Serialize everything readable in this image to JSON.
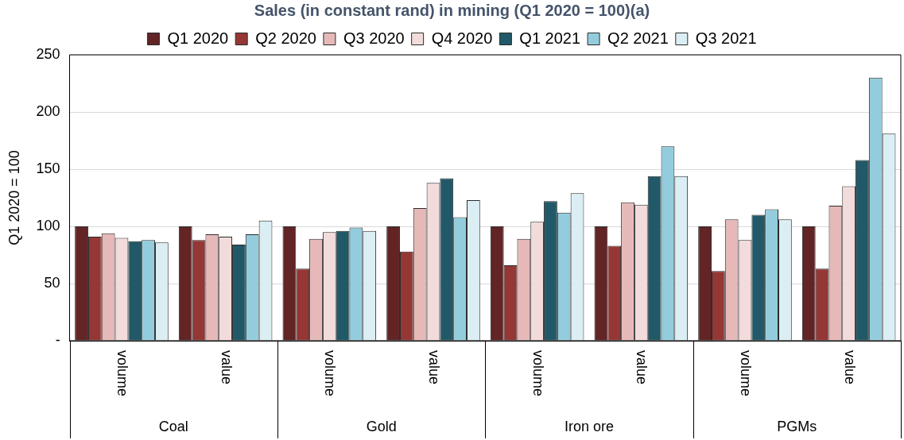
{
  "chart_data": {
    "type": "bar",
    "title": "Sales (in constant rand) in mining (Q1 2020 = 100)(a)",
    "ylabel": "Q1 2020 = 100",
    "categories": [
      "volume",
      "value",
      "volume",
      "value",
      "volume",
      "value",
      "volume",
      "value"
    ],
    "annotations": [
      "Coal",
      "Gold",
      "Iron ore",
      "PGMs"
    ],
    "series": [
      {
        "name": "Q1 2020",
        "color": "#622425",
        "values": [
          100,
          100,
          100,
          100,
          100,
          100,
          100,
          100
        ]
      },
      {
        "name": "Q2 2020",
        "color": "#953735",
        "values": [
          91,
          88,
          63,
          78,
          66,
          83,
          61,
          63
        ]
      },
      {
        "name": "Q3 2020",
        "color": "#e6b9b8",
        "values": [
          94,
          93,
          89,
          116,
          89,
          121,
          106,
          118
        ]
      },
      {
        "name": "Q4 2020",
        "color": "#f2dcdb",
        "values": [
          90,
          91,
          95,
          138,
          104,
          119,
          88,
          135
        ]
      },
      {
        "name": "Q1 2021",
        "color": "#215968",
        "values": [
          87,
          84,
          96,
          142,
          122,
          144,
          110,
          158
        ]
      },
      {
        "name": "Q2 2021",
        "color": "#93cddd",
        "values": [
          88,
          93,
          99,
          108,
          112,
          170,
          115,
          230
        ]
      },
      {
        "name": "Q3 2021",
        "color": "#dbeef4",
        "values": [
          86,
          105,
          96,
          123,
          129,
          144,
          106,
          181
        ]
      }
    ],
    "ylim": [
      0,
      250
    ],
    "yticks": [
      {
        "value": 0,
        "label": "-"
      },
      50,
      100,
      150,
      200,
      250
    ],
    "grid": "y",
    "legend": "top"
  }
}
